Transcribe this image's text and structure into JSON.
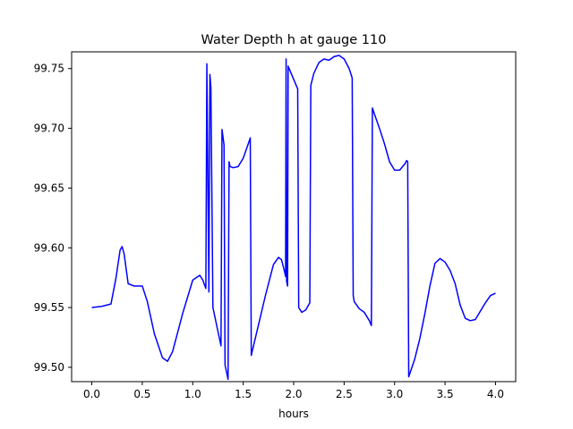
{
  "chart_data": {
    "type": "line",
    "title": "Water Depth h at gauge 110",
    "xlabel": "hours",
    "ylabel": "",
    "xlim": [
      -0.2,
      4.2
    ],
    "ylim": [
      99.488,
      99.764
    ],
    "xticks": [
      0.0,
      0.5,
      1.0,
      1.5,
      2.0,
      2.5,
      3.0,
      3.5,
      4.0
    ],
    "xtick_labels": [
      "0.0",
      "0.5",
      "1.0",
      "1.5",
      "2.0",
      "2.5",
      "3.0",
      "3.5",
      "4.0"
    ],
    "yticks": [
      99.5,
      99.55,
      99.6,
      99.65,
      99.7,
      99.75
    ],
    "ytick_labels": [
      "99.50",
      "99.55",
      "99.60",
      "99.65",
      "99.70",
      "99.75"
    ],
    "grid": false,
    "series": [
      {
        "color": "#0000ff",
        "x": [
          0.0,
          0.1,
          0.19,
          0.24,
          0.28,
          0.3,
          0.32,
          0.36,
          0.42,
          0.5,
          0.55,
          0.62,
          0.7,
          0.75,
          0.8,
          0.9,
          1.0,
          1.07,
          1.1,
          1.13,
          1.14,
          1.16,
          1.17,
          1.18,
          1.2,
          1.21,
          1.25,
          1.28,
          1.29,
          1.31,
          1.32,
          1.35,
          1.36,
          1.37,
          1.4,
          1.45,
          1.5,
          1.55,
          1.57,
          1.58,
          1.65,
          1.72,
          1.8,
          1.85,
          1.88,
          1.91,
          1.92,
          1.925,
          1.93,
          1.94,
          1.945,
          2.04,
          2.05,
          2.08,
          2.12,
          2.16,
          2.17,
          2.2,
          2.25,
          2.3,
          2.35,
          2.4,
          2.45,
          2.5,
          2.55,
          2.58,
          2.59,
          2.6,
          2.65,
          2.7,
          2.75,
          2.77,
          2.78,
          2.8,
          2.85,
          2.9,
          2.95,
          3.0,
          3.05,
          3.1,
          3.12,
          3.13,
          3.14,
          3.2,
          3.25,
          3.3,
          3.35,
          3.4,
          3.45,
          3.5,
          3.55,
          3.6,
          3.65,
          3.7,
          3.75,
          3.8,
          3.85,
          3.9,
          3.95,
          4.0
        ],
        "y": [
          99.55,
          99.551,
          99.553,
          99.575,
          99.598,
          99.601,
          99.595,
          99.57,
          99.568,
          99.568,
          99.555,
          99.528,
          99.508,
          99.505,
          99.513,
          99.545,
          99.573,
          99.577,
          99.573,
          99.566,
          99.754,
          99.563,
          99.745,
          99.734,
          99.55,
          99.546,
          99.53,
          99.518,
          99.699,
          99.686,
          99.502,
          99.49,
          99.672,
          99.668,
          99.667,
          99.668,
          99.675,
          99.687,
          99.692,
          99.51,
          99.535,
          99.56,
          99.586,
          99.592,
          99.59,
          99.58,
          99.576,
          99.758,
          99.572,
          99.568,
          99.752,
          99.733,
          99.55,
          99.546,
          99.548,
          99.554,
          99.736,
          99.746,
          99.755,
          99.758,
          99.757,
          99.76,
          99.761,
          99.758,
          99.75,
          99.742,
          99.56,
          99.555,
          99.549,
          99.546,
          99.539,
          99.535,
          99.717,
          99.712,
          99.7,
          99.687,
          99.672,
          99.665,
          99.665,
          99.67,
          99.673,
          99.672,
          99.492,
          99.507,
          99.524,
          99.545,
          99.568,
          99.587,
          99.591,
          99.588,
          99.581,
          99.57,
          99.552,
          99.541,
          99.539,
          99.54,
          99.547,
          99.554,
          99.56,
          99.562
        ]
      }
    ]
  }
}
